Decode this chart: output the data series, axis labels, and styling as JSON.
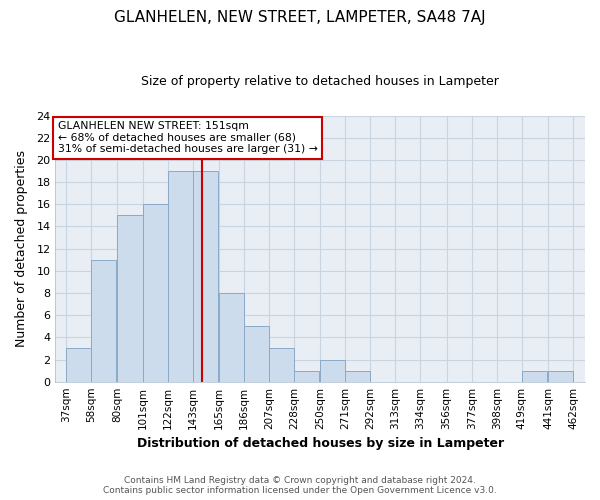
{
  "title": "GLANHELEN, NEW STREET, LAMPETER, SA48 7AJ",
  "subtitle": "Size of property relative to detached houses in Lampeter",
  "xlabel": "Distribution of detached houses by size in Lampeter",
  "ylabel": "Number of detached properties",
  "bar_left_edges": [
    37,
    58,
    80,
    101,
    122,
    143,
    165,
    186,
    207,
    228,
    250,
    271,
    292,
    313,
    334,
    356,
    377,
    398,
    419,
    441
  ],
  "bar_heights": [
    3,
    11,
    15,
    16,
    19,
    19,
    8,
    5,
    3,
    1,
    2,
    1,
    0,
    0,
    0,
    0,
    0,
    0,
    1,
    1
  ],
  "bin_width": 21,
  "bar_color": "#ccdcec",
  "bar_edge_color": "#8aaac8",
  "tick_labels": [
    "37sqm",
    "58sqm",
    "80sqm",
    "101sqm",
    "122sqm",
    "143sqm",
    "165sqm",
    "186sqm",
    "207sqm",
    "228sqm",
    "250sqm",
    "271sqm",
    "292sqm",
    "313sqm",
    "334sqm",
    "356sqm",
    "377sqm",
    "398sqm",
    "419sqm",
    "441sqm",
    "462sqm"
  ],
  "tick_positions": [
    37,
    58,
    80,
    101,
    122,
    143,
    165,
    186,
    207,
    228,
    250,
    271,
    292,
    313,
    334,
    356,
    377,
    398,
    419,
    441,
    462
  ],
  "vline_x": 151,
  "vline_color": "#cc0000",
  "ylim": [
    0,
    24
  ],
  "xlim": [
    28,
    472
  ],
  "annotation_title": "GLANHELEN NEW STREET: 151sqm",
  "annotation_line1": "← 68% of detached houses are smaller (68)",
  "annotation_line2": "31% of semi-detached houses are larger (31) →",
  "footer1": "Contains HM Land Registry data © Crown copyright and database right 2024.",
  "footer2": "Contains public sector information licensed under the Open Government Licence v3.0.",
  "grid_color": "#c8d4e0",
  "background_color": "#e8eef4"
}
